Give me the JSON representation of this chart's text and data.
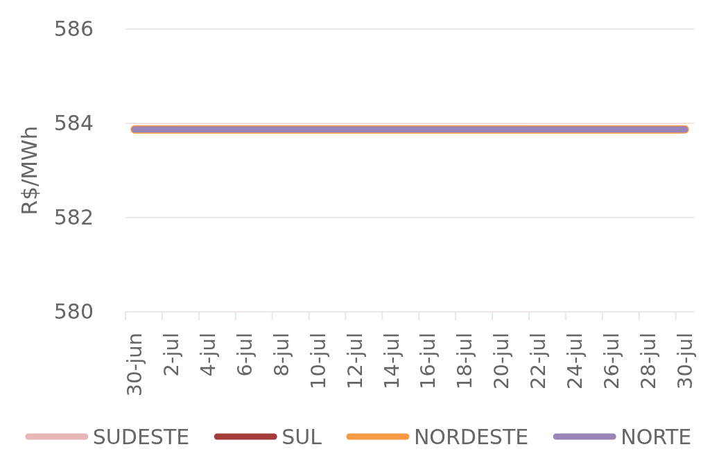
{
  "chart_data": {
    "type": "line",
    "ylabel": "R$/MWh",
    "categories": [
      "30-jun",
      null,
      "2-jul",
      null,
      "4-jul",
      null,
      "6-jul",
      null,
      "8-jul",
      null,
      "10-jul",
      null,
      "12-jul",
      null,
      "14-jul",
      null,
      "16-jul",
      null,
      "18-jul",
      null,
      "20-jul",
      null,
      "22-jul",
      null,
      "24-jul",
      null,
      "26-jul",
      null,
      "28-jul",
      null,
      "30-jul"
    ],
    "series": [
      {
        "name": "SUDESTE",
        "color": "#e8b6b6",
        "values": [
          null,
          null,
          null,
          null,
          null,
          null,
          null,
          null,
          null,
          null,
          null,
          null,
          null,
          null,
          null,
          null,
          null,
          null,
          null,
          null,
          null,
          null,
          null,
          null,
          null,
          null,
          null,
          null,
          null,
          null,
          null
        ]
      },
      {
        "name": "SUL",
        "color": "#a33b3b",
        "values": [
          null,
          null,
          null,
          null,
          null,
          null,
          null,
          null,
          null,
          null,
          null,
          null,
          null,
          null,
          null,
          null,
          null,
          null,
          null,
          null,
          null,
          null,
          null,
          null,
          null,
          null,
          null,
          null,
          null,
          null,
          null
        ]
      },
      {
        "name": "NORDESTE",
        "color": "#f79a46",
        "values": [
          583.87,
          583.87,
          583.87,
          583.87,
          583.87,
          583.87,
          583.87,
          583.87,
          583.87,
          583.87,
          583.87,
          583.87,
          583.87,
          583.87,
          583.87,
          583.87,
          583.87,
          583.87,
          583.87,
          583.87,
          583.87,
          583.87,
          583.87,
          583.87,
          583.87,
          583.87,
          583.87,
          583.87,
          583.87,
          583.87,
          583.87
        ]
      },
      {
        "name": "NORTE",
        "color": "#9b84b8",
        "values": [
          583.87,
          583.87,
          583.87,
          583.87,
          583.87,
          583.87,
          583.87,
          583.87,
          583.87,
          583.87,
          583.87,
          583.87,
          583.87,
          583.87,
          583.87,
          583.87,
          583.87,
          583.87,
          583.87,
          583.87,
          583.87,
          583.87,
          583.87,
          583.87,
          583.87,
          583.87,
          583.87,
          583.87,
          583.87,
          583.87,
          583.87
        ]
      }
    ],
    "ylim": [
      580,
      586
    ],
    "yticks": [
      580,
      582,
      584,
      586
    ],
    "grid": "y",
    "legend": "bottom",
    "line_style": "solid"
  }
}
